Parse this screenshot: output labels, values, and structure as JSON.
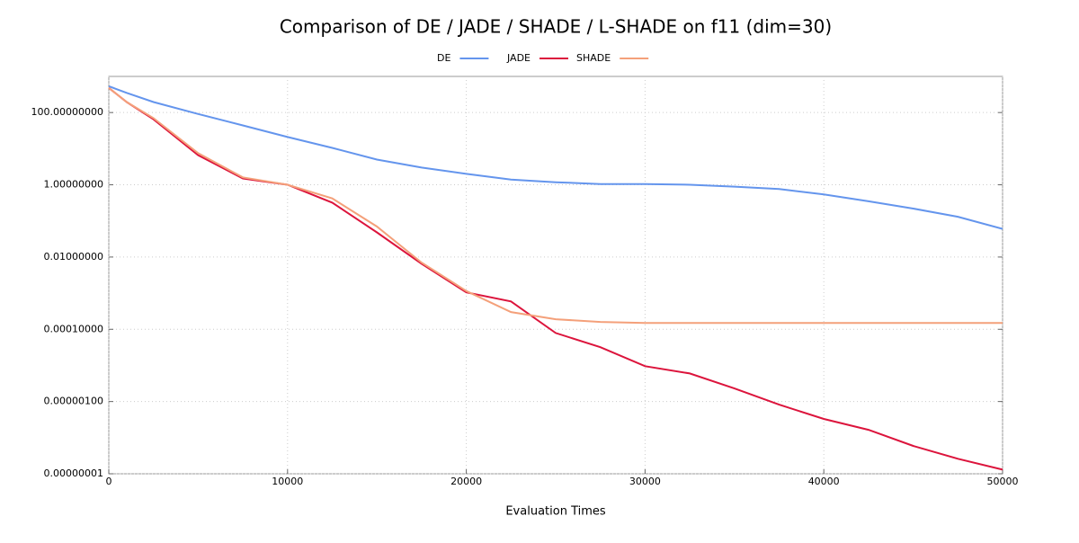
{
  "chart_data": {
    "type": "line",
    "title": "Comparison of DE / JADE / SHADE / L-SHADE on f11 (dim=30)",
    "x_label": "Evaluation Times",
    "x": [
      0,
      1000,
      2500,
      5000,
      7500,
      10000,
      12500,
      15000,
      17500,
      20000,
      22500,
      25000,
      27500,
      30000,
      32500,
      35000,
      37500,
      40000,
      42500,
      45000,
      47500,
      50000
    ],
    "series": [
      {
        "name": "DE",
        "color": "#6495ed",
        "values": [
          537,
          350,
          195,
          91,
          44,
          21,
          10.5,
          5,
          3,
          2,
          1.4,
          1.18,
          1.05,
          1.05,
          1.0,
          0.89,
          0.76,
          0.54,
          0.35,
          0.22,
          0.13,
          0.06
        ]
      },
      {
        "name": "JADE",
        "color": "#dc143c",
        "values": [
          480,
          195,
          65,
          6.6,
          1.5,
          1.0,
          0.32,
          0.048,
          0.0065,
          0.00105,
          0.00059,
          7.9e-05,
          3.2e-05,
          9.5e-06,
          6e-06,
          2.3e-06,
          8.2e-07,
          3.3e-07,
          1.65e-07,
          5.9e-08,
          2.6e-08,
          1.3e-08
        ]
      },
      {
        "name": "SHADE",
        "color": "#f4a07a",
        "values": [
          480,
          195,
          70,
          7.5,
          1.6,
          1.0,
          0.42,
          0.07,
          0.007,
          0.00115,
          0.0003,
          0.00019,
          0.00016,
          0.00015,
          0.00015,
          0.00015,
          0.00015,
          0.00015,
          0.00015,
          0.00015,
          0.00015,
          0.00015
        ]
      }
    ],
    "xlim": [
      0,
      50000
    ],
    "xticks": [
      0,
      10000,
      20000,
      30000,
      40000,
      50000
    ],
    "ylim": [
      1e-08,
      1000
    ],
    "log_y": true,
    "yticks": [
      {
        "value": 1e-08,
        "label": "0.00000001"
      },
      {
        "value": 1e-06,
        "label": "0.00000100"
      },
      {
        "value": 0.0001,
        "label": "0.00010000"
      },
      {
        "value": 0.01,
        "label": "0.01000000"
      },
      {
        "value": 1,
        "label": "1.00000000"
      },
      {
        "value": 100,
        "label": "100.00000000"
      }
    ],
    "grid": true,
    "legend": "top"
  }
}
